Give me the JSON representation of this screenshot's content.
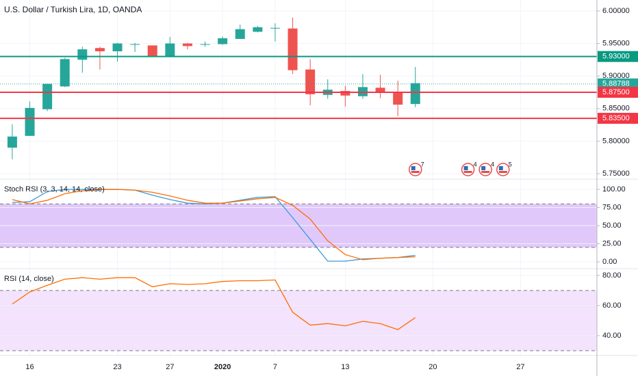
{
  "chart_data": [
    {
      "type": "candlestick",
      "title": "U.S. Dollar / Turkish Lira, 1D, OANDA",
      "x": [
        0,
        1,
        2,
        3,
        4,
        5,
        6,
        7,
        8,
        9,
        10,
        11,
        12,
        13,
        14,
        15,
        16,
        17,
        18,
        19,
        20,
        21,
        22,
        23
      ],
      "open": [
        5.79,
        5.808,
        5.849,
        5.884,
        5.925,
        5.943,
        5.938,
        5.948,
        5.947,
        5.93,
        5.95,
        5.948,
        5.949,
        5.957,
        5.968,
        5.973,
        5.973,
        5.91,
        5.871,
        5.877,
        5.869,
        5.882,
        5.876,
        5.857
      ],
      "high": [
        5.826,
        5.861,
        5.888,
        5.928,
        5.945,
        5.945,
        5.951,
        5.951,
        5.947,
        5.96,
        5.951,
        5.953,
        5.961,
        5.979,
        5.977,
        5.981,
        5.99,
        5.926,
        5.895,
        5.885,
        5.903,
        5.902,
        5.893,
        5.914
      ],
      "low": [
        5.772,
        5.808,
        5.846,
        5.883,
        5.905,
        5.91,
        5.922,
        5.937,
        5.93,
        5.93,
        5.941,
        5.945,
        5.948,
        5.957,
        5.967,
        5.953,
        5.903,
        5.855,
        5.865,
        5.853,
        5.865,
        5.866,
        5.838,
        5.852
      ],
      "close": [
        5.807,
        5.851,
        5.888,
        5.926,
        5.941,
        5.938,
        5.95,
        5.949,
        5.93,
        5.95,
        5.946,
        5.949,
        5.958,
        5.972,
        5.975,
        5.974,
        5.909,
        5.872,
        5.879,
        5.87,
        5.883,
        5.875,
        5.856,
        5.889
      ],
      "up_color": "#26a69a",
      "down_color": "#ef5350",
      "xlim": [
        -0.7,
        33.36
      ],
      "ylim": [
        5.7416,
        6.0168
      ],
      "yticks": [
        {
          "value": 6.0,
          "label": "6.00000"
        },
        {
          "value": 5.95,
          "label": "5.95000"
        },
        {
          "value": 5.9,
          "label": "5.90000"
        },
        {
          "value": 5.85,
          "label": "5.85000"
        },
        {
          "value": 5.8,
          "label": "5.80000"
        },
        {
          "value": 5.75,
          "label": "5.75000"
        }
      ],
      "levels": [
        {
          "value": 5.93,
          "label": "5.93000",
          "color": "#089981",
          "style": "solid"
        },
        {
          "value": 5.88788,
          "label": "5.88788",
          "color": "#26a69a",
          "style": "dotted"
        },
        {
          "value": 5.875,
          "label": "5.87500",
          "color": "#f23645",
          "style": "solid"
        },
        {
          "value": 5.835,
          "label": "5.83500",
          "color": "#f23645",
          "style": "solid"
        }
      ],
      "events": [
        {
          "x": 23,
          "count": 7
        },
        {
          "x": 26,
          "count": 4
        },
        {
          "x": 27,
          "count": 4
        },
        {
          "x": 28,
          "count": 5
        }
      ],
      "grid": true
    },
    {
      "type": "line",
      "title": "Stoch RSI (3, 3, 14, 14, close)",
      "x": [
        0,
        1,
        2,
        3,
        4,
        5,
        6,
        7,
        8,
        9,
        10,
        11,
        12,
        13,
        14,
        15,
        16,
        17,
        18,
        19,
        20,
        21,
        22,
        23
      ],
      "series": [
        {
          "color": "#3c9ad6",
          "values": [
            82,
            83,
            97,
            100,
            100,
            100,
            100,
            99,
            92,
            86,
            81,
            80,
            81,
            85,
            89,
            90,
            61,
            31,
            1,
            1,
            4,
            5,
            6,
            9
          ]
        },
        {
          "color": "#ff6d00",
          "values": [
            86,
            80,
            85,
            94,
            98,
            100,
            100,
            99,
            96,
            91,
            85,
            81,
            81,
            84,
            87,
            89,
            78,
            59,
            29,
            10,
            3,
            5,
            6,
            7
          ]
        }
      ],
      "band": [
        20,
        80
      ],
      "band_color": "#e1c8fb",
      "xlim": [
        -0.7,
        33.36
      ],
      "ylim": [
        -9.4,
        114.2
      ],
      "yticks": [
        {
          "value": 100,
          "label": "100.00"
        },
        {
          "value": 75,
          "label": "75.00"
        },
        {
          "value": 50,
          "label": "50.00"
        },
        {
          "value": 25,
          "label": "25.00"
        },
        {
          "value": 0,
          "label": "0.00"
        }
      ],
      "grid": true
    },
    {
      "type": "line",
      "title": "RSI (14, close)",
      "x": [
        0,
        1,
        2,
        3,
        4,
        5,
        6,
        7,
        8,
        9,
        10,
        11,
        12,
        13,
        14,
        15,
        16,
        17,
        18,
        19,
        20,
        21,
        22,
        23
      ],
      "series": [
        {
          "color": "#ff6d00",
          "values": [
            61,
            69,
            73.5,
            77.5,
            78.5,
            77.5,
            78.5,
            78.5,
            72.5,
            74.5,
            74,
            74.5,
            76,
            76.5,
            76.5,
            77,
            55.5,
            47,
            48,
            46.5,
            49.5,
            48,
            44,
            52
          ]
        }
      ],
      "band": [
        30,
        70
      ],
      "band_color": "#f3e3fc",
      "xlim": [
        -0.7,
        33.36
      ],
      "ylim": [
        26.8,
        84.5
      ],
      "yticks": [
        {
          "value": 80,
          "label": "80.00"
        },
        {
          "value": 60,
          "label": "60.00"
        },
        {
          "value": 40,
          "label": "40.00"
        }
      ],
      "xticks": [
        {
          "value": 1,
          "label": "16"
        },
        {
          "value": 6,
          "label": "23"
        },
        {
          "value": 9,
          "label": "27"
        },
        {
          "value": 12,
          "label": "2020",
          "bold": true
        },
        {
          "value": 15,
          "label": "7"
        },
        {
          "value": 19,
          "label": "13"
        },
        {
          "value": 24,
          "label": "20"
        },
        {
          "value": 29,
          "label": "27"
        }
      ],
      "grid": true
    }
  ]
}
